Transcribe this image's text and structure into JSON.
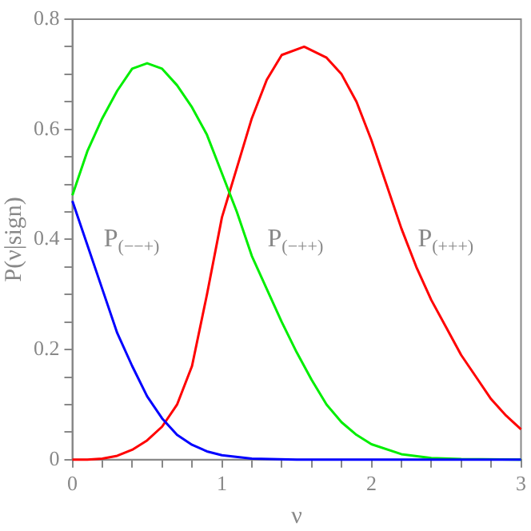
{
  "chart_data": {
    "type": "line",
    "xlabel": "ν",
    "ylabel": "P(ν|sign)",
    "xlim": [
      0,
      3
    ],
    "ylim": [
      0,
      0.8
    ],
    "xticks": [
      0,
      {
        "value": 0.2,
        "label": null
      },
      {
        "value": 0.4,
        "label": null
      },
      {
        "value": 0.6,
        "label": null
      },
      {
        "value": 0.8,
        "label": null
      },
      1,
      {
        "value": 1.2,
        "label": null
      },
      {
        "value": 1.4,
        "label": null
      },
      {
        "value": 1.6,
        "label": null
      },
      {
        "value": 1.8,
        "label": null
      },
      2,
      {
        "value": 2.2,
        "label": null
      },
      {
        "value": 2.4,
        "label": null
      },
      {
        "value": 2.6,
        "label": null
      },
      {
        "value": 2.8,
        "label": null
      },
      3
    ],
    "yticks": [
      0,
      {
        "value": 0.05,
        "label": null
      },
      {
        "value": 0.1,
        "label": null
      },
      {
        "value": 0.15,
        "label": null
      },
      0.2,
      {
        "value": 0.25,
        "label": null
      },
      {
        "value": 0.3,
        "label": null
      },
      {
        "value": 0.35,
        "label": null
      },
      0.4,
      {
        "value": 0.45,
        "label": null
      },
      {
        "value": 0.5,
        "label": null
      },
      {
        "value": 0.55,
        "label": null
      },
      0.6,
      {
        "value": 0.65,
        "label": null
      },
      {
        "value": 0.7,
        "label": null
      },
      {
        "value": 0.75,
        "label": null
      },
      0.8
    ],
    "grid": false,
    "legend": false,
    "marker": "none",
    "line_style": "solid",
    "series": [
      {
        "color": "#0000ff",
        "x": [
          0,
          0.1,
          0.2,
          0.3,
          0.4,
          0.5,
          0.6,
          0.7,
          0.8,
          0.9,
          1.0,
          1.2,
          1.5,
          2,
          2.5,
          3
        ],
        "values": [
          0.47,
          0.39,
          0.31,
          0.23,
          0.17,
          0.115,
          0.075,
          0.045,
          0.027,
          0.015,
          0.008,
          0.002,
          0,
          0,
          0,
          0
        ]
      },
      {
        "color": "#00ee00",
        "x": [
          0,
          0.1,
          0.2,
          0.3,
          0.4,
          0.5,
          0.6,
          0.7,
          0.8,
          0.9,
          1.0,
          1.1,
          1.2,
          1.3,
          1.4,
          1.5,
          1.6,
          1.7,
          1.8,
          1.9,
          2.0,
          2.2,
          2.4,
          2.6,
          3
        ],
        "values": [
          0.48,
          0.56,
          0.62,
          0.67,
          0.71,
          0.72,
          0.71,
          0.68,
          0.64,
          0.59,
          0.52,
          0.45,
          0.37,
          0.31,
          0.25,
          0.195,
          0.145,
          0.1,
          0.068,
          0.045,
          0.028,
          0.01,
          0.003,
          0.001,
          0
        ]
      },
      {
        "color": "#ff0000",
        "x": [
          0,
          0.1,
          0.2,
          0.3,
          0.4,
          0.5,
          0.6,
          0.7,
          0.8,
          0.9,
          1.0,
          1.1,
          1.2,
          1.3,
          1.4,
          1.55,
          1.7,
          1.8,
          1.9,
          2.0,
          2.1,
          2.2,
          2.3,
          2.4,
          2.5,
          2.6,
          2.7,
          2.8,
          2.9,
          3.0
        ],
        "values": [
          0,
          0,
          0.002,
          0.007,
          0.018,
          0.035,
          0.06,
          0.1,
          0.17,
          0.3,
          0.44,
          0.53,
          0.62,
          0.69,
          0.735,
          0.75,
          0.73,
          0.7,
          0.65,
          0.58,
          0.5,
          0.42,
          0.35,
          0.29,
          0.24,
          0.19,
          0.15,
          0.11,
          0.08,
          0.055
        ]
      }
    ],
    "annotations": [
      "P$_{(−−+)}$",
      "P$_{(−++)}$",
      "P$_{(+++)}$"
    ]
  }
}
